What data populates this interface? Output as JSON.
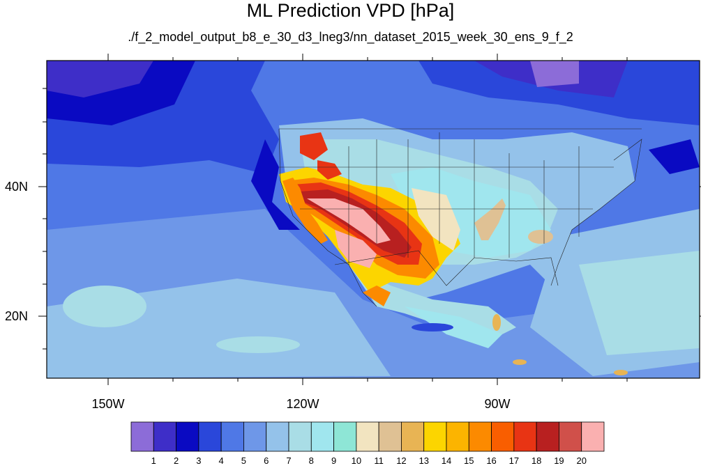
{
  "title": "ML Prediction VPD [hPa]",
  "subtitle": "./f_2_model_output_b8_e_30_d3_lneg3/nn_dataset_2015_week_30_ens_9_f_2",
  "lon_labels": [
    "150W",
    "120W",
    "90W"
  ],
  "lat_labels": [
    "40N",
    "20N"
  ],
  "colorbar": {
    "labels": [
      "1",
      "2",
      "3",
      "4",
      "5",
      "6",
      "7",
      "8",
      "9",
      "10",
      "11",
      "12",
      "13",
      "14",
      "15",
      "16",
      "17",
      "18",
      "19",
      "20"
    ],
    "colors": [
      "#8c6cd8",
      "#3e2ec8",
      "#0a0ac2",
      "#2a47da",
      "#4f78e6",
      "#6e97e8",
      "#94c2ea",
      "#a9dde6",
      "#a0e6ee",
      "#8ee6d6",
      "#f2e4c0",
      "#dfc194",
      "#e8b454",
      "#fcd500",
      "#fcb400",
      "#fc8a00",
      "#f95e00",
      "#e83414",
      "#b82020",
      "#d0504a",
      "#fab0b0"
    ]
  }
}
